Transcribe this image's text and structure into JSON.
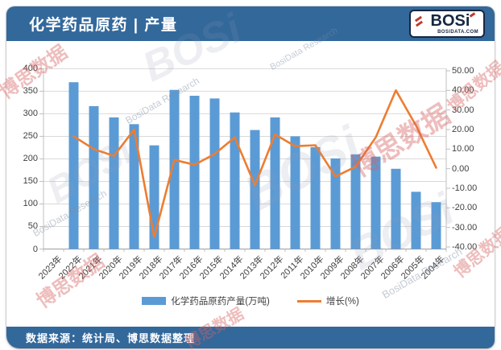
{
  "header": {
    "title": "化学药品原药 | 产量",
    "logo_text": "BOSi",
    "logo_domain": "BOSIDATA.COM"
  },
  "footer": {
    "source_text": "数据来源：统计局、博思数据整理"
  },
  "legend": [
    {
      "label": "化学药品原药产量(万吨)",
      "type": "bar",
      "color": "#5B9BD5"
    },
    {
      "label": "增长(%)",
      "type": "line",
      "color": "#ED7D31"
    }
  ],
  "colors": {
    "header_bar": "#33689B",
    "bar_fill": "#5B9BD5",
    "line_stroke": "#ED7D31",
    "gridline": "#D9D9D9",
    "axis_line": "#BFBFBF",
    "axis_text": "#404040"
  },
  "watermarks": {
    "texts": [
      "博思数据",
      "BosiData Research",
      "BOSi"
    ]
  },
  "chart_data": {
    "type": "bar",
    "subtype": "bar+line combo, dual axis",
    "title": "化学药品原药 | 产量",
    "xlabel": "",
    "ylabel_left": "产量(万吨)",
    "ylabel_right": "增长(%)",
    "grid": true,
    "legend_position": "bottom",
    "categories": [
      "2023年",
      "2022年",
      "2021年",
      "2020年",
      "2019年",
      "2018年",
      "2017年",
      "2016年",
      "2015年",
      "2014年",
      "2013年",
      "2012年",
      "2011年",
      "2010年",
      "2009年",
      "2008年",
      "2007年",
      "2006年",
      "2005年",
      "2004年"
    ],
    "series": [
      {
        "name": "化学药品原药产量(万吨)",
        "type": "bar",
        "axis": "left",
        "color": "#5B9BD5",
        "values": [
          null,
          370,
          317,
          292,
          277,
          230,
          353,
          340,
          334,
          303,
          264,
          292,
          250,
          226,
          201,
          210,
          205,
          178,
          127,
          104
        ]
      },
      {
        "name": "增长(%)",
        "type": "line",
        "axis": "right",
        "color": "#ED7D31",
        "values": [
          null,
          16.5,
          10,
          6.5,
          20,
          -35,
          4.5,
          2,
          7.5,
          16,
          -8.5,
          17.5,
          11.5,
          12,
          -4,
          1,
          16,
          40,
          22,
          0.5
        ]
      }
    ],
    "left_axis": {
      "min": 0,
      "max": 400,
      "step": 50,
      "tick_labels": [
        "400",
        "350",
        "300",
        "250",
        "200",
        "150",
        "100",
        "50",
        "0"
      ]
    },
    "right_axis": {
      "min": -40,
      "max": 50,
      "step": 10,
      "tick_labels": [
        "50.00",
        "40.00",
        "30.00",
        "20.00",
        "10.00",
        "0.00",
        "-10.00",
        "-20.00",
        "-30.00",
        "-40.00"
      ]
    }
  }
}
